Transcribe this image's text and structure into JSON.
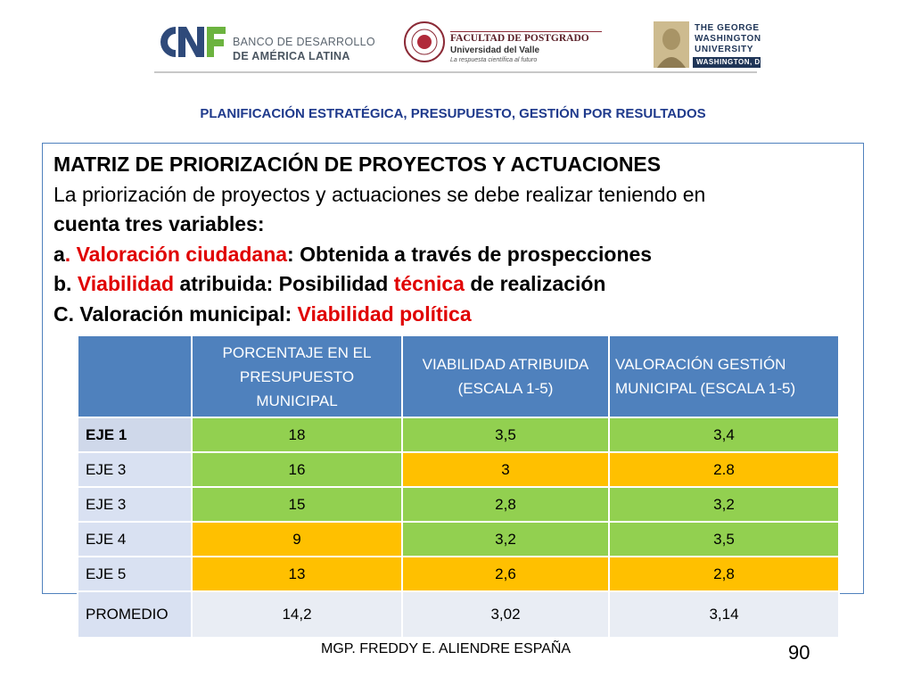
{
  "logos": {
    "caf": {
      "line1": "BANCO DE DESARROLLO",
      "line2": "DE AMÉRICA LATINA",
      "mark": "CAF"
    },
    "postgrado": {
      "title": "FACULTAD DE POSTGRADO",
      "university": "Universidad del Valle",
      "motto": "La respuesta científica al futuro"
    },
    "gwu": {
      "line1": "THE GEORGE",
      "line2": "WASHINGTON",
      "line3": "UNIVERSITY",
      "line4": "WASHINGTON, DC"
    }
  },
  "subtitle": "PLANIFICACIÓN ESTRATÉGICA, PRESUPUESTO, GESTIÓN POR RESULTADOS",
  "heading": "MATRIZ DE PRIORIZACIÓN DE PROYECTOS Y ACTUACIONES",
  "intro_line1": "La priorización de proyectos y actuaciones se debe realizar teniendo en",
  "intro_line2": "cuenta tres variables:",
  "item_a": {
    "letter": "a",
    "sep": ". ",
    "highlight": "Valoración ciudadana",
    "rest": ": Obtenida a través de prospecciones"
  },
  "item_b": {
    "prefix": "b. ",
    "highlight": "Viabilidad",
    "mid": " atribuida: Posibilidad ",
    "highlight2": "técnica",
    "rest": " de realización"
  },
  "item_c": {
    "prefix": "C. Valoración municipal: ",
    "highlight": "Viabilidad política"
  },
  "table": {
    "headers": [
      "",
      "PORCENTAJE  EN EL PRESUPUESTO MUNICIPAL",
      "VIABILIDAD ATRIBUIDA (ESCALA 1-5)",
      "VALORACIÓN GESTIÓN MUNICIPAL (ESCALA 1-5)"
    ],
    "rows": [
      {
        "label": "EJE 1",
        "v1": "18",
        "v2": "3,5",
        "v3": "3,4",
        "c1": "green",
        "c2": "green",
        "c3": "green"
      },
      {
        "label": "EJE 3",
        "v1": "16",
        "v2": "3",
        "v3": "2.8",
        "c1": "green",
        "c2": "amber",
        "c3": "amber"
      },
      {
        "label": "EJE 3",
        "v1": "15",
        "v2": "2,8",
        "v3": "3,2",
        "c1": "green",
        "c2": "green",
        "c3": "green"
      },
      {
        "label": "EJE 4",
        "v1": "9",
        "v2": "3,2",
        "v3": "3,5",
        "c1": "amber",
        "c2": "green",
        "c3": "green"
      },
      {
        "label": "EJE 5",
        "v1": "13",
        "v2": "2,6",
        "v3": "2,8",
        "c1": "amber",
        "c2": "amber",
        "c3": "amber"
      }
    ],
    "average": {
      "label": "PROMEDIO",
      "v1": "14,2",
      "v2": "3,02",
      "v3": "3,14"
    }
  },
  "colors": {
    "header_blue": "#4f81bd",
    "green": "#92d050",
    "amber": "#ffc000",
    "highlight_red": "#e00000",
    "subtitle_blue": "#1f3a8c"
  },
  "footer": "MGP. FREDDY E. ALIENDRE ESPAÑA",
  "page_number": "90"
}
